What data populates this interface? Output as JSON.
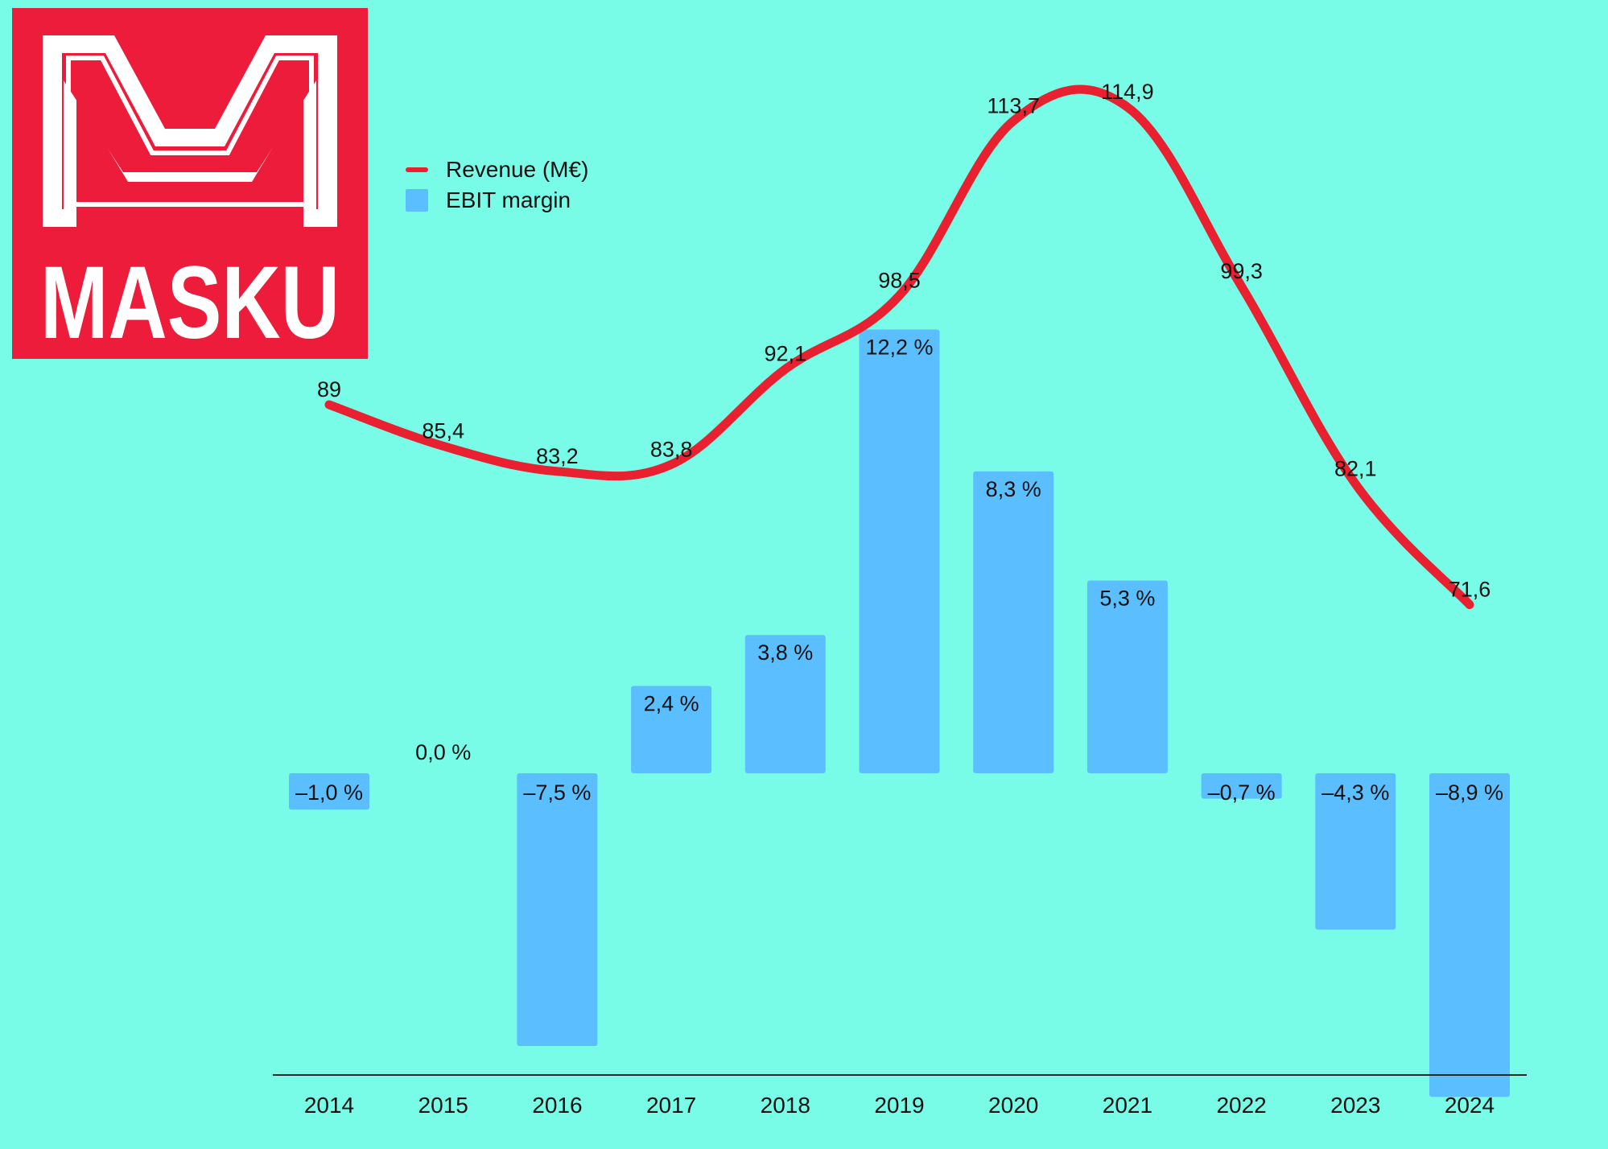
{
  "brand": {
    "name": "MASKU",
    "logo_bg": "#EC1C3A",
    "logo_fg": "#FFFFFF"
  },
  "legend": {
    "revenue_label": "Revenue (M€)",
    "ebit_label": "EBIT margin"
  },
  "colors": {
    "background": "#78FCE8",
    "line": "#E8202F",
    "bar": "#5BBEFF",
    "text": "#111111"
  },
  "chart_data": {
    "type": "bar+line",
    "categories": [
      "2014",
      "2015",
      "2016",
      "2017",
      "2018",
      "2019",
      "2020",
      "2021",
      "2022",
      "2023",
      "2024"
    ],
    "series": [
      {
        "name": "Revenue (M€)",
        "type": "line",
        "values": [
          89,
          85.4,
          83.2,
          83.8,
          92.1,
          98.5,
          113.7,
          114.9,
          99.3,
          82.1,
          71.6
        ],
        "labels": [
          "89",
          "85,4",
          "83,2",
          "83,8",
          "92,1",
          "98,5",
          "113,7",
          "114,9",
          "99,3",
          "82,1",
          "71,6"
        ]
      },
      {
        "name": "EBIT margin",
        "type": "bar",
        "unit": "%",
        "values": [
          -1.0,
          0.0,
          -7.5,
          2.4,
          3.8,
          12.2,
          8.3,
          5.3,
          -0.7,
          -4.3,
          -8.9
        ],
        "labels": [
          "–1,0 %",
          "0,0 %",
          "–7,5 %",
          "2,4 %",
          "3,8 %",
          "12,2 %",
          "8,3 %",
          "5,3 %",
          "–0,7 %",
          "–4,3 %",
          "–8,9 %"
        ]
      }
    ],
    "title": "",
    "xlabel": "",
    "ylabel": ""
  }
}
